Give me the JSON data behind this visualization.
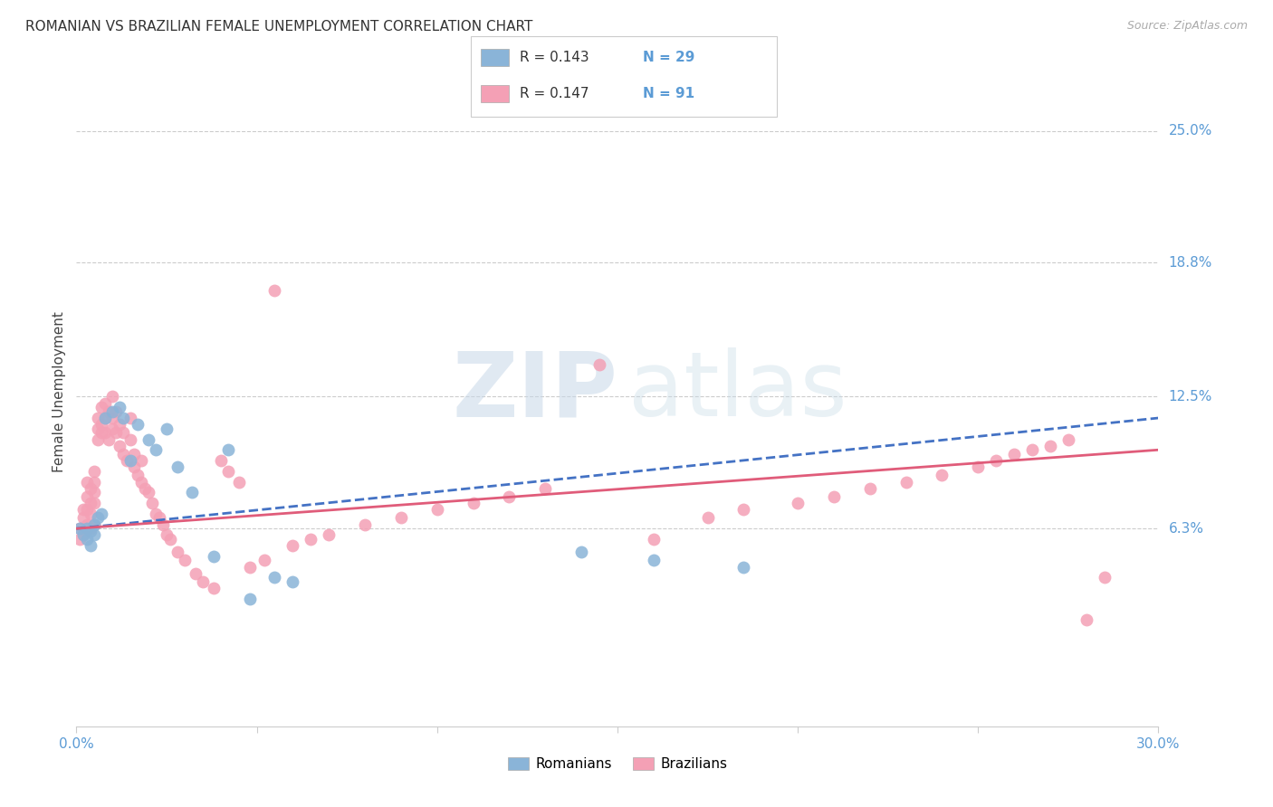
{
  "title": "ROMANIAN VS BRAZILIAN FEMALE UNEMPLOYMENT CORRELATION CHART",
  "source": "Source: ZipAtlas.com",
  "ylabel": "Female Unemployment",
  "ytick_labels": [
    "25.0%",
    "18.8%",
    "12.5%",
    "6.3%"
  ],
  "ytick_values": [
    0.25,
    0.188,
    0.125,
    0.063
  ],
  "xlim": [
    0.0,
    0.3
  ],
  "ylim": [
    -0.03,
    0.285
  ],
  "legend_r_romanian": "R = 0.143",
  "legend_n_romanian": "N = 29",
  "legend_r_brazilian": "R = 0.147",
  "legend_n_brazilian": "N = 91",
  "romanian_color": "#8ab4d8",
  "brazilian_color": "#f4a0b5",
  "trend_romanian_color": "#4472c4",
  "trend_brazilian_color": "#e05c7a",
  "background_color": "#ffffff",
  "romanians_x": [
    0.001,
    0.002,
    0.003,
    0.003,
    0.004,
    0.004,
    0.005,
    0.005,
    0.006,
    0.007,
    0.008,
    0.01,
    0.012,
    0.013,
    0.015,
    0.017,
    0.02,
    0.022,
    0.025,
    0.028,
    0.032,
    0.038,
    0.042,
    0.048,
    0.055,
    0.06,
    0.14,
    0.16,
    0.185
  ],
  "romanians_y": [
    0.063,
    0.06,
    0.063,
    0.058,
    0.062,
    0.055,
    0.065,
    0.06,
    0.068,
    0.07,
    0.115,
    0.118,
    0.12,
    0.115,
    0.095,
    0.112,
    0.105,
    0.1,
    0.11,
    0.092,
    0.08,
    0.05,
    0.1,
    0.03,
    0.04,
    0.038,
    0.052,
    0.048,
    0.045
  ],
  "brazilians_x": [
    0.001,
    0.001,
    0.002,
    0.002,
    0.002,
    0.003,
    0.003,
    0.003,
    0.003,
    0.004,
    0.004,
    0.004,
    0.004,
    0.005,
    0.005,
    0.005,
    0.005,
    0.005,
    0.006,
    0.006,
    0.006,
    0.007,
    0.007,
    0.007,
    0.008,
    0.008,
    0.008,
    0.009,
    0.009,
    0.01,
    0.01,
    0.01,
    0.011,
    0.011,
    0.012,
    0.012,
    0.013,
    0.013,
    0.014,
    0.015,
    0.015,
    0.016,
    0.016,
    0.017,
    0.018,
    0.018,
    0.019,
    0.02,
    0.021,
    0.022,
    0.023,
    0.024,
    0.025,
    0.026,
    0.028,
    0.03,
    0.033,
    0.035,
    0.038,
    0.04,
    0.042,
    0.045,
    0.048,
    0.052,
    0.055,
    0.06,
    0.065,
    0.07,
    0.08,
    0.09,
    0.1,
    0.11,
    0.12,
    0.13,
    0.145,
    0.16,
    0.175,
    0.185,
    0.2,
    0.21,
    0.22,
    0.23,
    0.24,
    0.25,
    0.255,
    0.26,
    0.265,
    0.27,
    0.275,
    0.28,
    0.285
  ],
  "brazilians_y": [
    0.063,
    0.058,
    0.072,
    0.068,
    0.06,
    0.085,
    0.078,
    0.072,
    0.065,
    0.082,
    0.075,
    0.07,
    0.063,
    0.09,
    0.085,
    0.08,
    0.075,
    0.065,
    0.115,
    0.11,
    0.105,
    0.12,
    0.112,
    0.108,
    0.122,
    0.115,
    0.108,
    0.118,
    0.105,
    0.125,
    0.115,
    0.11,
    0.118,
    0.108,
    0.112,
    0.102,
    0.108,
    0.098,
    0.095,
    0.115,
    0.105,
    0.098,
    0.092,
    0.088,
    0.095,
    0.085,
    0.082,
    0.08,
    0.075,
    0.07,
    0.068,
    0.065,
    0.06,
    0.058,
    0.052,
    0.048,
    0.042,
    0.038,
    0.035,
    0.095,
    0.09,
    0.085,
    0.045,
    0.048,
    0.175,
    0.055,
    0.058,
    0.06,
    0.065,
    0.068,
    0.072,
    0.075,
    0.078,
    0.082,
    0.14,
    0.058,
    0.068,
    0.072,
    0.075,
    0.078,
    0.082,
    0.085,
    0.088,
    0.092,
    0.095,
    0.098,
    0.1,
    0.102,
    0.105,
    0.02,
    0.04
  ]
}
